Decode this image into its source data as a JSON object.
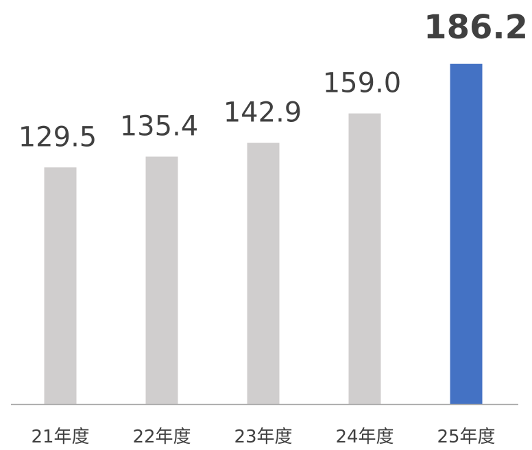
{
  "chart_data": {
    "type": "bar",
    "categories": [
      "21年度",
      "22年度",
      "23年度",
      "24年度",
      "25年度"
    ],
    "values": [
      129.5,
      135.4,
      142.9,
      159.0,
      186.2
    ],
    "value_labels": [
      "129.5",
      "135.4",
      "142.9",
      "159.0",
      "186.2"
    ],
    "highlight_index": 4,
    "colors": {
      "bar": "#d0cece",
      "highlight": "#4472c4",
      "axis": "#a6a6a6",
      "text": "#404040"
    },
    "title": "",
    "xlabel": "",
    "ylabel": "",
    "grid": false,
    "legend": "none"
  }
}
